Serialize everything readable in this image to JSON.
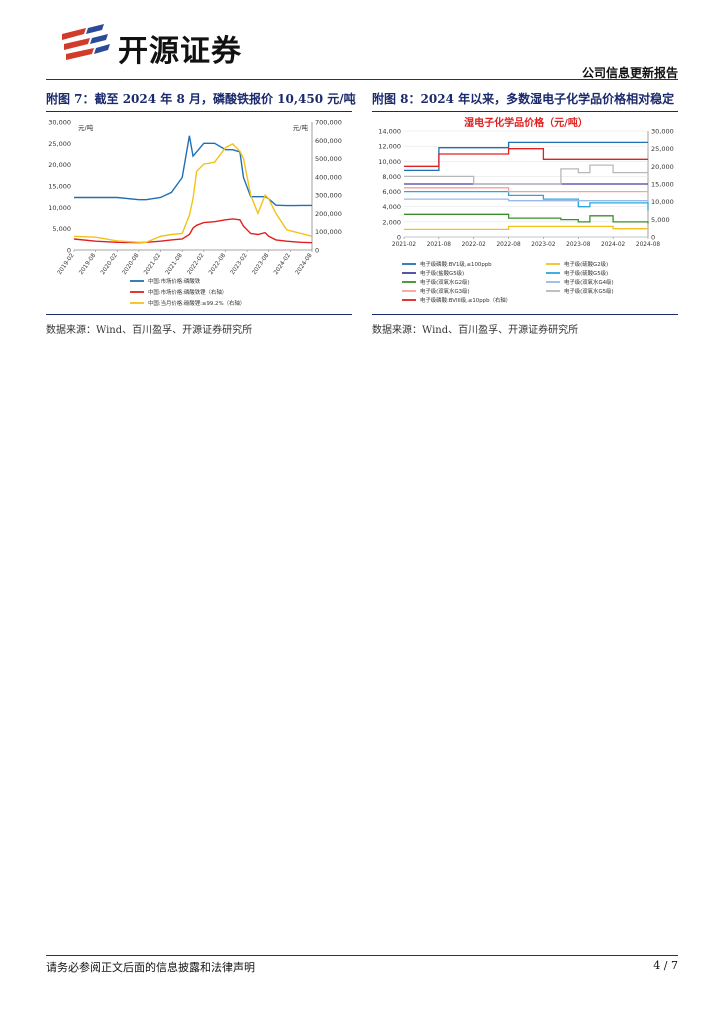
{
  "header": {
    "company": "开源证券",
    "report_type": "公司信息更新报告"
  },
  "figures": [
    {
      "title": "附图 7：截至 2024 年 8 月，磷酸铁报价 10,450 元/吨",
      "source": "数据来源：Wind、百川盈孚、开源证券研究所",
      "chart_data": {
        "type": "line",
        "left_axis_unit": "元/吨",
        "right_axis_unit": "元/吨",
        "ylim_left": [
          0,
          30000
        ],
        "ylim_right": [
          0,
          700000
        ],
        "yticks_left": [
          "30,000",
          "25,000",
          "20,000",
          "15,000",
          "10,000",
          "5,000",
          "0"
        ],
        "yticks_right": [
          "700,000",
          "600,000",
          "500,000",
          "400,000",
          "300,000",
          "200,000",
          "100,000",
          "0"
        ],
        "xticks": [
          "2019-02",
          "2019-08",
          "2020-02",
          "2020-08",
          "2021-02",
          "2021-08",
          "2022-02",
          "2022-08",
          "2023-02",
          "2023-08",
          "2024-02",
          "2024-08"
        ],
        "x": [
          "2019-02",
          "2019-08",
          "2020-02",
          "2020-08",
          "2020-10",
          "2021-02",
          "2021-05",
          "2021-08",
          "2021-10",
          "2021-11",
          "2021-12",
          "2022-02",
          "2022-05",
          "2022-08",
          "2022-10",
          "2022-12",
          "2023-01",
          "2023-03",
          "2023-05",
          "2023-07",
          "2023-08",
          "2023-10",
          "2024-01",
          "2024-03",
          "2024-05",
          "2024-08"
        ],
        "series": [
          {
            "name": "中国:市场价格:磷酸铁",
            "color": "#1f6fb5",
            "axis": "left",
            "values": [
              12300,
              12300,
              12300,
              11800,
              11800,
              12300,
              13500,
              17000,
              26800,
              22000,
              23000,
              25000,
              25000,
              23500,
              23500,
              23000,
              17000,
              12500,
              12500,
              12500,
              12000,
              10500,
              10400,
              10400,
              10450,
              10450
            ]
          },
          {
            "name": "中国:市场价格:磷酸铁锂（右轴）",
            "color": "#e02020",
            "axis": "right",
            "values": [
              60000,
              48000,
              42000,
              40000,
              42000,
              48000,
              55000,
              60000,
              85000,
              120000,
              135000,
              150000,
              155000,
              165000,
              170000,
              165000,
              130000,
              90000,
              85000,
              95000,
              75000,
              55000,
              48000,
              45000,
              42000,
              40000
            ]
          },
          {
            "name": "中国:当月价格:碳酸锂:≥99.2%（右轴）",
            "color": "#f2c21a",
            "axis": "right",
            "values": [
              75000,
              70000,
              50000,
              42000,
              42000,
              75000,
              85000,
              90000,
              190000,
              280000,
              430000,
              470000,
              480000,
              560000,
              580000,
              540000,
              500000,
              300000,
              200000,
              300000,
              280000,
              200000,
              110000,
              100000,
              90000,
              75000
            ]
          }
        ]
      }
    },
    {
      "title": "附图 8：2024 年以来，多数湿电子化学品价格相对稳定",
      "source": "数据来源：Wind、百川盈孚、开源证券研究所",
      "chart_data": {
        "type": "line",
        "title": "湿电子化学品价格（元/吨）",
        "ylim_left": [
          0,
          14000
        ],
        "ylim_right": [
          0,
          30000
        ],
        "yticks_left": [
          "14,000",
          "12,000",
          "10,000",
          "8,000",
          "6,000",
          "4,000",
          "2,000",
          "0"
        ],
        "yticks_right": [
          "30,000",
          "25,000",
          "20,000",
          "15,000",
          "10,000",
          "5,000",
          "0"
        ],
        "xticks": [
          "2021-02",
          "2021-08",
          "2022-02",
          "2022-08",
          "2023-02",
          "2023-08",
          "2024-02",
          "2024-08"
        ],
        "x": [
          "2021-02",
          "2021-08",
          "2022-02",
          "2022-08",
          "2023-02",
          "2023-05",
          "2023-08",
          "2023-10",
          "2024-02",
          "2024-08"
        ],
        "series": [
          {
            "name": "电子级磷酸:BV1级,≤100ppb",
            "color": "#1f6fb5",
            "axis": "left",
            "values": [
              8800,
              11800,
              11800,
              12500,
              12500,
              12500,
              12500,
              12500,
              12500,
              12500
            ]
          },
          {
            "name": "电子级(硫酸G2级)",
            "color": "#f2c21a",
            "axis": "left",
            "values": [
              1000,
              1000,
              1000,
              1400,
              1400,
              1400,
              1400,
              1400,
              1100,
              1100
            ]
          },
          {
            "name": "电子级(盐酸G5级)",
            "color": "#4a3fa0",
            "axis": "left",
            "values": [
              7000,
              7000,
              7000,
              7000,
              7000,
              7000,
              7000,
              7000,
              7000,
              7000
            ]
          },
          {
            "name": "电子级(硫酸G5级)",
            "color": "#29a8df",
            "axis": "left",
            "values": [
              6000,
              6000,
              6000,
              5500,
              5000,
              5000,
              4000,
              4500,
              4500,
              3500
            ]
          },
          {
            "name": "电子级(双氧水G2级)",
            "color": "#3a8f2a",
            "axis": "left",
            "values": [
              3000,
              3000,
              3000,
              2500,
              2500,
              2300,
              2000,
              2800,
              2000,
              1800
            ]
          },
          {
            "name": "电子级(双氧水G4级)",
            "color": "#9ab8e8",
            "axis": "left",
            "values": [
              5000,
              5000,
              5000,
              4800,
              4800,
              4800,
              4800,
              4800,
              4800,
              4800
            ]
          },
          {
            "name": "电子级(双氧水G3级)",
            "color": "#f4a29a",
            "axis": "left",
            "values": [
              6500,
              6500,
              6500,
              6000,
              6000,
              6000,
              6000,
              6000,
              6000,
              6000
            ]
          },
          {
            "name": "电子级(双氧水G5级)",
            "color": "#b8b8b8",
            "axis": "left",
            "values": [
              8000,
              8000,
              7000,
              7000,
              7000,
              9000,
              8500,
              9500,
              8500,
              8500
            ]
          },
          {
            "name": "电子级磷酸:BVIII级,≤10ppb（右轴）",
            "color": "#e02020",
            "axis": "right",
            "values": [
              20000,
              23500,
              23500,
              25000,
              22000,
              22000,
              22000,
              22000,
              22000,
              22000
            ]
          }
        ]
      }
    }
  ],
  "footer": {
    "disclaimer": "请务必参阅正文后面的信息披露和法律声明",
    "page": "4 / 7"
  }
}
